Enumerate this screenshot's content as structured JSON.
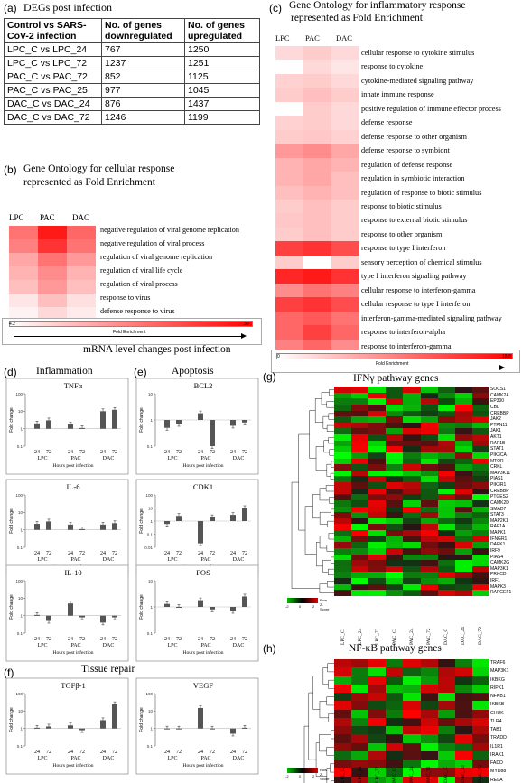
{
  "panel_a": {
    "letter": "(a)",
    "title": "DEGs post infection",
    "headers": [
      "Control vs SARS-CoV-2 infection",
      "No. of genes downregulated",
      "No. of genes upregulated"
    ],
    "rows": [
      [
        "LPC_C vs LPC_24",
        "767",
        "1250"
      ],
      [
        "LPC_C vs LPC_72",
        "1237",
        "1251"
      ],
      [
        "PAC_C vs PAC_72",
        "852",
        "1125"
      ],
      [
        "PAC_C vs PAC_25",
        "977",
        "1045"
      ],
      [
        "DAC_C vs DAC_24",
        "876",
        "1437"
      ],
      [
        "DAC_C vs DAC_72",
        "1246",
        "1199"
      ]
    ]
  },
  "panel_b": {
    "letter": "(b)",
    "title_line1": "Gene Ontology for cellular response",
    "title_line2": "represented as Fold Enrichment",
    "columns": [
      "LPC",
      "PAC",
      "DAC"
    ],
    "terms": [
      "negative regulation of viral genome replication",
      "negative regulation of viral process",
      "regulation of viral genome replication",
      "regulation of viral life cycle",
      "regulation of viral process",
      "response to virus",
      "defense response to virus"
    ],
    "colorbar_min": "4.2",
    "colorbar_max": "30",
    "colorbar_label": "Fold Enrichment"
  },
  "panel_c": {
    "letter": "(c)",
    "title_line1": "Gene Ontology for inflammatory response",
    "title_line2": "represented as Fold Enrichment",
    "columns": [
      "LPC",
      "PAC",
      "DAC"
    ],
    "terms": [
      "cellular response to cytokine stimulus",
      "response to cytokine",
      "cytokine-mediated signaling pathway",
      "innate immune response",
      "positive regulation of immune effector process",
      "defense response",
      "defense response to other organism",
      "defense response to symbiont",
      "regulation of defense response",
      "regulation  in symbiotic interaction",
      "regulation of response to biotic stimulus",
      "response to biotic stimulus",
      "response to external biotic stimulus",
      "response to other organism",
      "response to type I interferon",
      "sensory perception of chemical stimulus",
      "type I interferon signaling pathway",
      "cellular response to interferon-gamma",
      "cellular response to type I interferon",
      "interferon-gamma-mediated signaling pathway",
      "response to interferon-alpha",
      "response to interferon-gamma"
    ],
    "colorbar_min": "0",
    "colorbar_max": "18.8",
    "colorbar_label": "Fold Enrichment"
  },
  "mrna_title": "mRNA level changes post infection",
  "sections": {
    "d_letter": "(d)",
    "d_title": "Inflammation",
    "e_letter": "(e)",
    "e_title": "Apoptosis",
    "f_letter": "(f)",
    "f_title": "Tissue repair"
  },
  "bar_common": {
    "ylabel": "Fold change",
    "xlabel": "Hours post infection",
    "time_labels": [
      "24",
      "72",
      "24",
      "72",
      "24",
      "72"
    ],
    "group_labels": [
      "LPC",
      "PAC",
      "DAC"
    ],
    "yticks": [
      "10",
      "1",
      "0.1"
    ]
  },
  "chart_data": [
    {
      "type": "bar",
      "title": "TNFα",
      "categories": [
        "LPC 24",
        "LPC 72",
        "PAC 24",
        "PAC 72",
        "DAC 24",
        "DAC 72"
      ],
      "values": [
        2.0,
        3.0,
        1.8,
        1.1,
        10,
        12
      ],
      "yscale": "log",
      "ylim": [
        0.1,
        100
      ],
      "ylabel": "Fold change",
      "xlabel": "Hours post infection"
    },
    {
      "type": "bar",
      "title": "BCL2",
      "categories": [
        "LPC 24",
        "LPC 72",
        "PAC 24",
        "PAC 72",
        "DAC 24",
        "DAC 72"
      ],
      "values": [
        0.5,
        0.7,
        1.8,
        0.1,
        0.6,
        0.8
      ],
      "yscale": "log",
      "ylim": [
        0.1,
        10
      ],
      "ylabel": "Fold change",
      "xlabel": "Hours post infection"
    },
    {
      "type": "bar",
      "title": "IL-6",
      "categories": [
        "LPC 24",
        "LPC 72",
        "PAC 24",
        "PAC 72",
        "DAC 24",
        "DAC 72"
      ],
      "values": [
        2.2,
        3.0,
        2.0,
        1.1,
        2.0,
        2.4
      ],
      "yscale": "log",
      "ylim": [
        0.1,
        100
      ],
      "ylabel": "Fold change",
      "xlabel": "Hours post infection"
    },
    {
      "type": "bar",
      "title": "CDK1",
      "categories": [
        "LPC 24",
        "LPC 72",
        "PAC 24",
        "PAC 72",
        "DAC 24",
        "DAC 72"
      ],
      "values": [
        0.6,
        2.5,
        0.02,
        2.0,
        3.0,
        10
      ],
      "yscale": "log",
      "ylim": [
        0.01,
        100
      ],
      "ylabel": "Fold change",
      "xlabel": "Hours post infection"
    },
    {
      "type": "bar",
      "title": "IL-10",
      "categories": [
        "LPC 24",
        "LPC 72",
        "PAC 24",
        "PAC 72",
        "DAC 24",
        "DAC 72"
      ],
      "values": [
        1.1,
        0.5,
        5.0,
        0.8,
        0.4,
        0.8
      ],
      "yscale": "log",
      "ylim": [
        0.1,
        100
      ],
      "ylabel": "Fold change",
      "xlabel": "Hours post infection"
    },
    {
      "type": "bar",
      "title": "FOS",
      "categories": [
        "LPC 24",
        "LPC 72",
        "PAC 24",
        "PAC 72",
        "DAC 24",
        "DAC 72"
      ],
      "values": [
        1.3,
        1.0,
        1.8,
        0.8,
        0.7,
        2.5
      ],
      "yscale": "log",
      "ylim": [
        0.1,
        10
      ],
      "ylabel": "Fold change",
      "xlabel": "Hours post infection"
    },
    {
      "type": "bar",
      "title": "TGFβ-1",
      "categories": [
        "LPC 24",
        "LPC 72",
        "PAC 24",
        "PAC 72",
        "DAC 24",
        "DAC 72"
      ],
      "values": [
        1.1,
        1.3,
        1.5,
        0.8,
        3.0,
        25
      ],
      "yscale": "log",
      "ylim": [
        0.1,
        100
      ],
      "ylabel": "Fold change",
      "xlabel": "Hours post infection"
    },
    {
      "type": "bar",
      "title": "VEGF",
      "categories": [
        "LPC 24",
        "LPC 72",
        "PAC 24",
        "PAC 72",
        "DAC 24",
        "DAC 72"
      ],
      "values": [
        1.0,
        1.0,
        15,
        1.0,
        0.5,
        1.1
      ],
      "yscale": "log",
      "ylim": [
        0.1,
        100
      ],
      "ylabel": "Fold change",
      "xlabel": "Hours post infection"
    }
  ],
  "panel_g": {
    "letter": "(g)",
    "title": "IFNγ pathway genes",
    "genes": [
      "SOCS1",
      "CAMK2A",
      "EP300",
      "CBL",
      "CREBBP",
      "JAK2",
      "PTPN11",
      "JAK1",
      "AKT1",
      "RAP1B",
      "STAT1",
      "PIK3CA",
      "MTOR",
      "CRKL",
      "MAP3K11",
      "PIAS1",
      "PIK3R1",
      "CREBBP",
      "PTGES2",
      "CAMK2D",
      "SMAD7",
      "STAT3",
      "MAP2K1",
      "RAP1A",
      "MAPK1",
      "IFNGR1",
      "DAPK1",
      "IRF9",
      "PIAS4",
      "CAMK2G",
      "MAP3K1",
      "PRKCD",
      "IRF1",
      "MAPK3",
      "RAPGEF1"
    ],
    "columns": [
      "LPC_C",
      "LPC_24",
      "LPC_72",
      "PAC_C",
      "PAC_24",
      "PAC_72",
      "DAC_C",
      "DAC_24",
      "DAC_72"
    ],
    "legend_label": "Row Z-Score",
    "legend_ticks": [
      "-2",
      "0",
      "2"
    ]
  },
  "panel_h": {
    "letter": "(h)",
    "title": "NF-κB pathway genes",
    "genes": [
      "TRAF6",
      "MAP3K1",
      "IKBKG",
      "RIPK1",
      "NFKB1",
      "IKBKB",
      "CHUK",
      "TLR4",
      "TAB1",
      "TRADD",
      "IL1R1",
      "IRAK1",
      "FADD",
      "MYD88",
      "RELA",
      "MAP3K7",
      "TNFRSF1A",
      "NFKBIA",
      "MAP4K4"
    ],
    "columns": [
      "LPC_C",
      "LPC_24",
      "LPC_72",
      "PAC_C",
      "PAC_24",
      "PAC_72",
      "DAC_C",
      "DAC_24",
      "DAC_72"
    ],
    "legend_label": "Row Z-Score",
    "legend_ticks": [
      "-2",
      "0",
      "2"
    ]
  }
}
